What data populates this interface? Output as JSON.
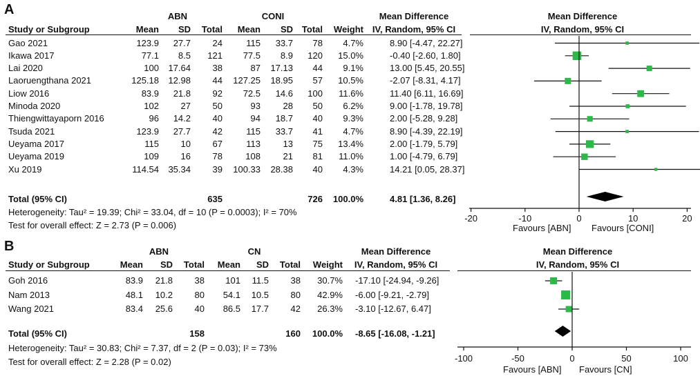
{
  "panels": {
    "A": {
      "letter": "A",
      "group1": "ABN",
      "group2": "CONI",
      "head_study": "Study or Subgroup",
      "head_mean": "Mean",
      "head_sd": "SD",
      "head_total": "Total",
      "head_weight": "Weight",
      "head_md": "Mean Difference",
      "head_md_sub": "IV, Random, 95% CI",
      "head_plot": "Mean Difference",
      "head_plot_sub": "IV, Random, 95% CI",
      "total_label": "Total (95% CI)",
      "total_n1": "635",
      "total_n2": "726",
      "total_weight": "100.0%",
      "total_ci": "4.81 [1.36, 8.26]",
      "heterogeneity": "Heterogeneity: Tau² = 19.39; Chi² = 33.04, df = 10 (P = 0.0003); I² = 70%",
      "overall_test": "Test for overall effect: Z = 2.73 (P = 0.006)",
      "favours_left": "Favours [ABN]",
      "favours_right": "Favours [CONI]"
    },
    "B": {
      "letter": "B",
      "group1": "ABN",
      "group2": "CN",
      "head_study": "Study or Subgroup",
      "head_mean": "Mean",
      "head_sd": "SD",
      "head_total": "Total",
      "head_weight": "Weight",
      "head_md": "Mean Difference",
      "head_md_sub": "IV, Random, 95% CI",
      "head_plot": "Mean Difference",
      "head_plot_sub": "IV, Random, 95% CI",
      "total_label": "Total (95% CI)",
      "total_n1": "158",
      "total_n2": "160",
      "total_weight": "100.0%",
      "total_ci": "-8.65 [-16.08, -1.21]",
      "heterogeneity": "Heterogeneity: Tau² = 30.83; Chi² = 7.37, df = 2 (P = 0.03); I² = 73%",
      "overall_test": "Test for overall effect: Z = 2.28 (P = 0.02)",
      "favours_left": "Favours [ABN]",
      "favours_right": "Favours [CN]"
    }
  },
  "chart_data": [
    {
      "type": "forest",
      "panel": "A",
      "x_range": [
        -20,
        20
      ],
      "ticks": [
        -20,
        -10,
        0,
        10,
        20
      ],
      "tick_labels": [
        "-20",
        "-10",
        "0",
        "10",
        "20"
      ],
      "studies": [
        {
          "name": "Gao 2021",
          "m1": "123.9",
          "sd1": "27.7",
          "n1": "24",
          "m2": "115",
          "sd2": "33.7",
          "n2": "78",
          "weight": "4.7%",
          "ci_text": "8.90 [-4.47, 22.27]",
          "md": 8.9,
          "lo": -4.47,
          "hi": 22.27
        },
        {
          "name": "Ikawa 2017",
          "m1": "77.1",
          "sd1": "8.5",
          "n1": "121",
          "m2": "77.5",
          "sd2": "8.9",
          "n2": "120",
          "weight": "15.0%",
          "ci_text": "-0.40 [-2.60, 1.80]",
          "md": -0.4,
          "lo": -2.6,
          "hi": 1.8
        },
        {
          "name": "Lai 2020",
          "m1": "100",
          "sd1": "17.64",
          "n1": "38",
          "m2": "87",
          "sd2": "17.13",
          "n2": "44",
          "weight": "9.1%",
          "ci_text": "13.00 [5.45, 20.55]",
          "md": 13.0,
          "lo": 5.45,
          "hi": 20.55
        },
        {
          "name": "Laoruengthana 2021",
          "m1": "125.18",
          "sd1": "12.98",
          "n1": "44",
          "m2": "127.25",
          "sd2": "18.95",
          "n2": "57",
          "weight": "10.5%",
          "ci_text": "-2.07 [-8.31, 4.17]",
          "md": -2.07,
          "lo": -8.31,
          "hi": 4.17
        },
        {
          "name": "Liow 2016",
          "m1": "83.9",
          "sd1": "21.8",
          "n1": "92",
          "m2": "72.5",
          "sd2": "14.6",
          "n2": "100",
          "weight": "11.6%",
          "ci_text": "11.40 [6.11, 16.69]",
          "md": 11.4,
          "lo": 6.11,
          "hi": 16.69
        },
        {
          "name": "Minoda 2020",
          "m1": "102",
          "sd1": "27",
          "n1": "50",
          "m2": "93",
          "sd2": "28",
          "n2": "50",
          "weight": "6.2%",
          "ci_text": "9.00 [-1.78, 19.78]",
          "md": 9.0,
          "lo": -1.78,
          "hi": 19.78
        },
        {
          "name": "Thiengwittayaporn 2016",
          "m1": "96",
          "sd1": "14.2",
          "n1": "40",
          "m2": "94",
          "sd2": "18.7",
          "n2": "40",
          "weight": "9.3%",
          "ci_text": "2.00 [-5.28, 9.28]",
          "md": 2.0,
          "lo": -5.28,
          "hi": 9.28
        },
        {
          "name": "Tsuda 2021",
          "m1": "123.9",
          "sd1": "27.7",
          "n1": "42",
          "m2": "115",
          "sd2": "33.7",
          "n2": "41",
          "weight": "4.7%",
          "ci_text": "8.90 [-4.39, 22.19]",
          "md": 8.9,
          "lo": -4.39,
          "hi": 22.19
        },
        {
          "name": "Ueyama 2017",
          "m1": "115",
          "sd1": "10",
          "n1": "67",
          "m2": "113",
          "sd2": "13",
          "n2": "75",
          "weight": "13.4%",
          "ci_text": "2.00 [-1.79, 5.79]",
          "md": 2.0,
          "lo": -1.79,
          "hi": 5.79
        },
        {
          "name": "Ueyama 2019",
          "m1": "109",
          "sd1": "16",
          "n1": "78",
          "m2": "108",
          "sd2": "21",
          "n2": "81",
          "weight": "11.0%",
          "ci_text": "1.00 [-4.79, 6.79]",
          "md": 1.0,
          "lo": -4.79,
          "hi": 6.79
        },
        {
          "name": "Xu 2019",
          "m1": "114.54",
          "sd1": "35.34",
          "n1": "39",
          "m2": "100.33",
          "sd2": "28.38",
          "n2": "40",
          "weight": "4.3%",
          "ci_text": "14.21 [0.05, 28.37]",
          "md": 14.21,
          "lo": 0.05,
          "hi": 28.37
        }
      ],
      "pooled": {
        "md": 4.81,
        "lo": 1.36,
        "hi": 8.26
      }
    },
    {
      "type": "forest",
      "panel": "B",
      "x_range": [
        -100,
        100
      ],
      "ticks": [
        -100,
        -50,
        0,
        50,
        100
      ],
      "tick_labels": [
        "-100",
        "-50",
        "0",
        "50",
        "100"
      ],
      "studies": [
        {
          "name": "Goh 2016",
          "m1": "83.9",
          "sd1": "21.8",
          "n1": "38",
          "m2": "101",
          "sd2": "11.5",
          "n2": "38",
          "weight": "30.7%",
          "ci_text": "-17.10 [-24.94, -9.26]",
          "md": -17.1,
          "lo": -24.94,
          "hi": -9.26
        },
        {
          "name": "Nam 2013",
          "m1": "48.1",
          "sd1": "10.2",
          "n1": "80",
          "m2": "54.1",
          "sd2": "10.5",
          "n2": "80",
          "weight": "42.9%",
          "ci_text": "-6.00 [-9.21, -2.79]",
          "md": -6.0,
          "lo": -9.21,
          "hi": -2.79
        },
        {
          "name": "Wang 2021",
          "m1": "83.4",
          "sd1": "25.6",
          "n1": "40",
          "m2": "86.5",
          "sd2": "17.7",
          "n2": "42",
          "weight": "26.3%",
          "ci_text": "-3.10 [-12.67, 6.47]",
          "md": -3.1,
          "lo": -12.67,
          "hi": 6.47
        }
      ],
      "pooled": {
        "md": -8.65,
        "lo": -16.08,
        "hi": -1.21
      }
    }
  ],
  "colors": {
    "square": "#2db84a",
    "diamond": "#000000",
    "line": "#111111"
  }
}
